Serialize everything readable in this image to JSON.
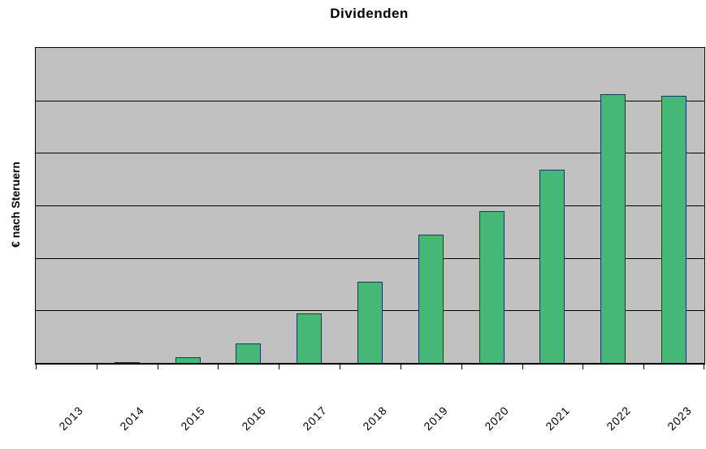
{
  "chart_data": {
    "type": "bar",
    "title": "Dividenden",
    "xlabel": "",
    "ylabel": "€ nach Steruern",
    "categories": [
      "2013",
      "2014",
      "2015",
      "2016",
      "2017",
      "2018",
      "2019",
      "2020",
      "2021",
      "2022",
      "2023"
    ],
    "values": [
      0,
      0.02,
      0.11,
      0.37,
      0.94,
      1.55,
      2.44,
      2.89,
      3.68,
      5.12,
      5.09
    ],
    "values_note": "No numeric y-axis tick labels are visible; values estimated in gridline units where 1 unit = one horizontal gridline interval",
    "ylim": [
      0,
      6
    ],
    "y_tick_labels": "none",
    "gridlines": "horizontal",
    "gridline_divisions": 6,
    "legend": "none",
    "x_label_rotation_deg": 45,
    "colors": {
      "bar_fill": "#45b878",
      "bar_border": "#17375e",
      "plot_background": "#c0c0c0",
      "gridline": "#000000",
      "axis": "#000000",
      "page_background": "#ffffff",
      "text": "#000000"
    }
  }
}
